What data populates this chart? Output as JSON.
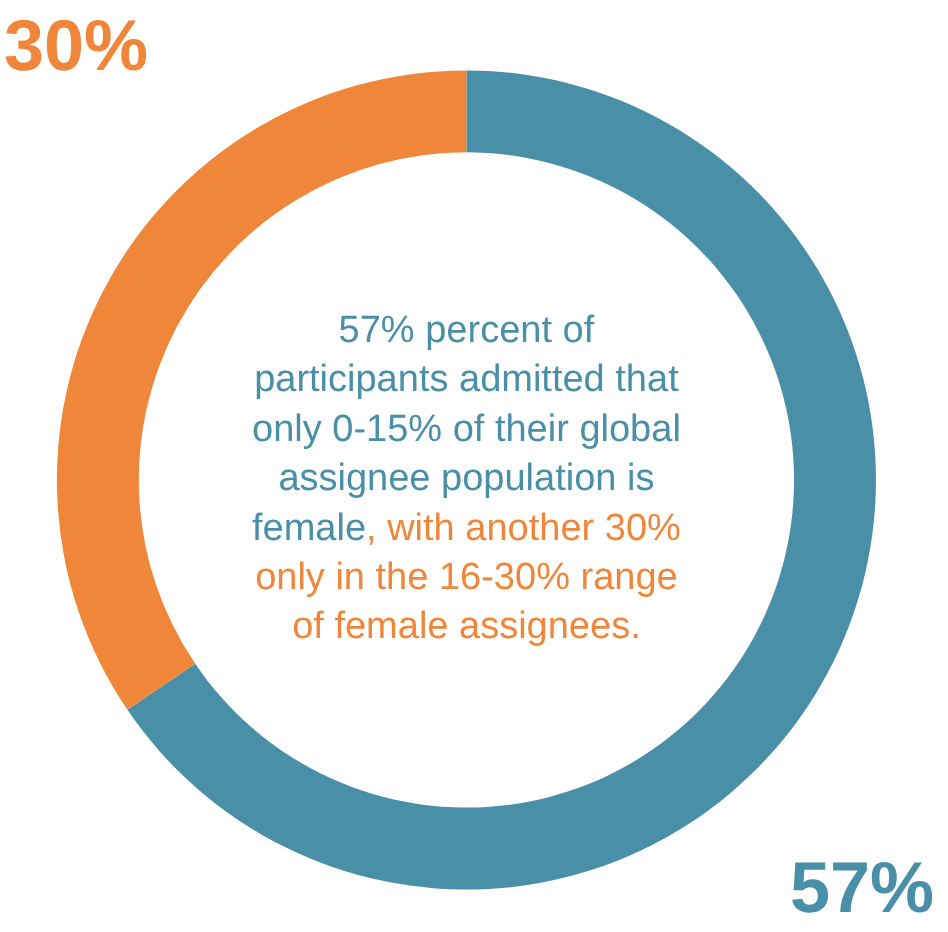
{
  "chart_data": {
    "type": "donut",
    "categories": [
      null,
      null
    ],
    "values": [
      57,
      30
    ],
    "colors": [
      "#4a8fa8",
      "#f0863a"
    ],
    "value_labels": [
      "57%",
      "30%"
    ],
    "annotations": [
      "57% percent of\nparticipants admitted that\nonly 0-15% of their global\nassignee population is\nfemale",
      ", with another 30%\nonly in the 16-30% range\nof female assignees."
    ],
    "legend": false
  }
}
